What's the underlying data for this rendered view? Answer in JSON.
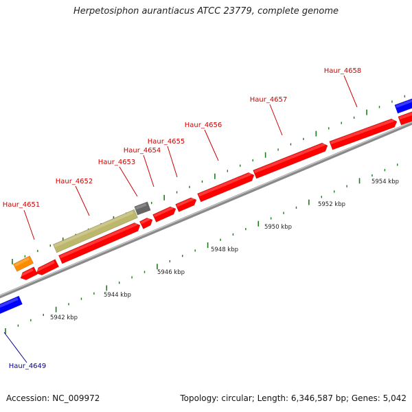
{
  "title": "Herpetosiphon aurantiacus ATCC 23779, complete genome",
  "footer": {
    "accession": "Accession: NC_009972",
    "summary": "Topology: circular; Length: 6,346,587 bp; Genes: 5,042"
  },
  "colors": {
    "cds": "#ff0000",
    "misc_gene": "#bdb76b",
    "pseudo": "#666666",
    "rna": "#ff8c00",
    "other_strand": "#0000ff",
    "backbone": "#8a8a8a",
    "tick": "#1a7a1a",
    "label_red": "#cc0000",
    "label_blue": "#00008b"
  },
  "ruler": {
    "unit": "kbp",
    "labels": [
      {
        "text": "5942 kbp",
        "kb": 5942
      },
      {
        "text": "5944 kbp",
        "kb": 5944
      },
      {
        "text": "5946 kbp",
        "kb": 5946
      },
      {
        "text": "5948 kbp",
        "kb": 5948
      },
      {
        "text": "5950 kbp",
        "kb": 5950
      },
      {
        "text": "5952 kbp",
        "kb": 5952
      },
      {
        "text": "5954 kbp",
        "kb": 5954
      }
    ]
  },
  "genes": [
    {
      "label": "Haur_4651",
      "label_color": "label_red"
    },
    {
      "label": "Haur_4652",
      "label_color": "label_red"
    },
    {
      "label": "Haur_4653",
      "label_color": "label_red"
    },
    {
      "label": "Haur_4654",
      "label_color": "label_red"
    },
    {
      "label": "Haur_4655",
      "label_color": "label_red"
    },
    {
      "label": "Haur_4656",
      "label_color": "label_red"
    },
    {
      "label": "Haur_4657",
      "label_color": "label_red"
    },
    {
      "label": "Haur_4658",
      "label_color": "label_red"
    },
    {
      "label": "Haur_4649",
      "label_color": "label_blue"
    }
  ]
}
